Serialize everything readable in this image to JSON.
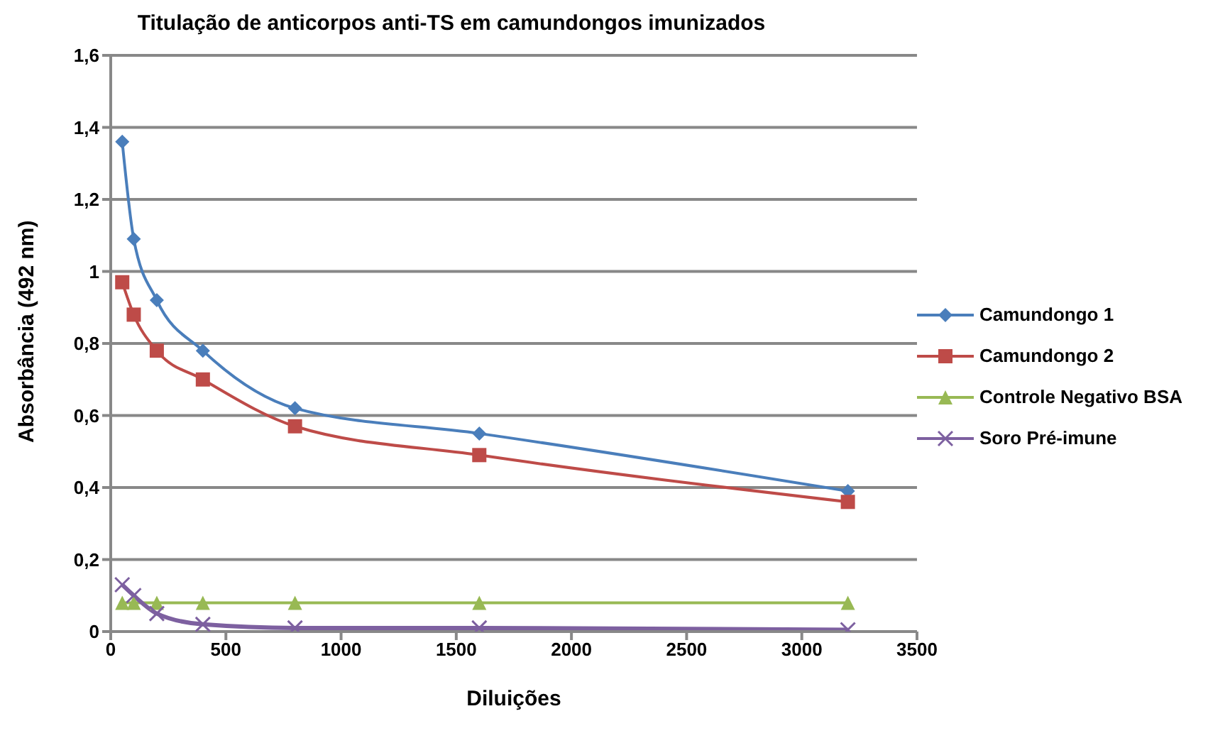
{
  "chart_data": {
    "type": "line",
    "title": "Titulação de anticorpos anti-TS em camundongos imunizados",
    "xlabel": "Diluições",
    "ylabel": "Absorbância (492 nm)",
    "x": [
      50,
      100,
      200,
      400,
      800,
      1600,
      3200
    ],
    "series": [
      {
        "name": "Camundongo 1",
        "color": "#4a7ebb",
        "marker": "diamond",
        "values": [
          1.36,
          1.09,
          0.92,
          0.78,
          0.62,
          0.55,
          0.39
        ]
      },
      {
        "name": "Camundongo 2",
        "color": "#be4b48",
        "marker": "square",
        "values": [
          0.97,
          0.88,
          0.78,
          0.7,
          0.57,
          0.49,
          0.36
        ]
      },
      {
        "name": "Controle Negativo BSA",
        "color": "#98b954",
        "marker": "triangle",
        "values": [
          0.08,
          0.08,
          0.08,
          0.08,
          0.08,
          0.08,
          0.08
        ]
      },
      {
        "name": "Soro Pré-imune",
        "color": "#7d60a0",
        "marker": "cross",
        "values": [
          0.13,
          0.1,
          0.05,
          0.02,
          0.01,
          0.01,
          0.005
        ]
      }
    ],
    "xlim": [
      0,
      3500
    ],
    "xticks": [
      0,
      500,
      1000,
      1500,
      2000,
      2500,
      3000,
      3500
    ],
    "ylim": [
      0,
      1.6
    ],
    "yticks": [
      0,
      {
        "value": 0.2,
        "label": "0,2"
      },
      {
        "value": 0.4,
        "label": "0,4"
      },
      {
        "value": 0.6,
        "label": "0,6"
      },
      {
        "value": 0.8,
        "label": "0,8"
      },
      1,
      {
        "value": 1.2,
        "label": "1,2"
      },
      {
        "value": 1.4,
        "label": "1,4"
      },
      {
        "value": 1.6,
        "label": "1,6"
      }
    ],
    "grid": "y",
    "legend": "right"
  }
}
